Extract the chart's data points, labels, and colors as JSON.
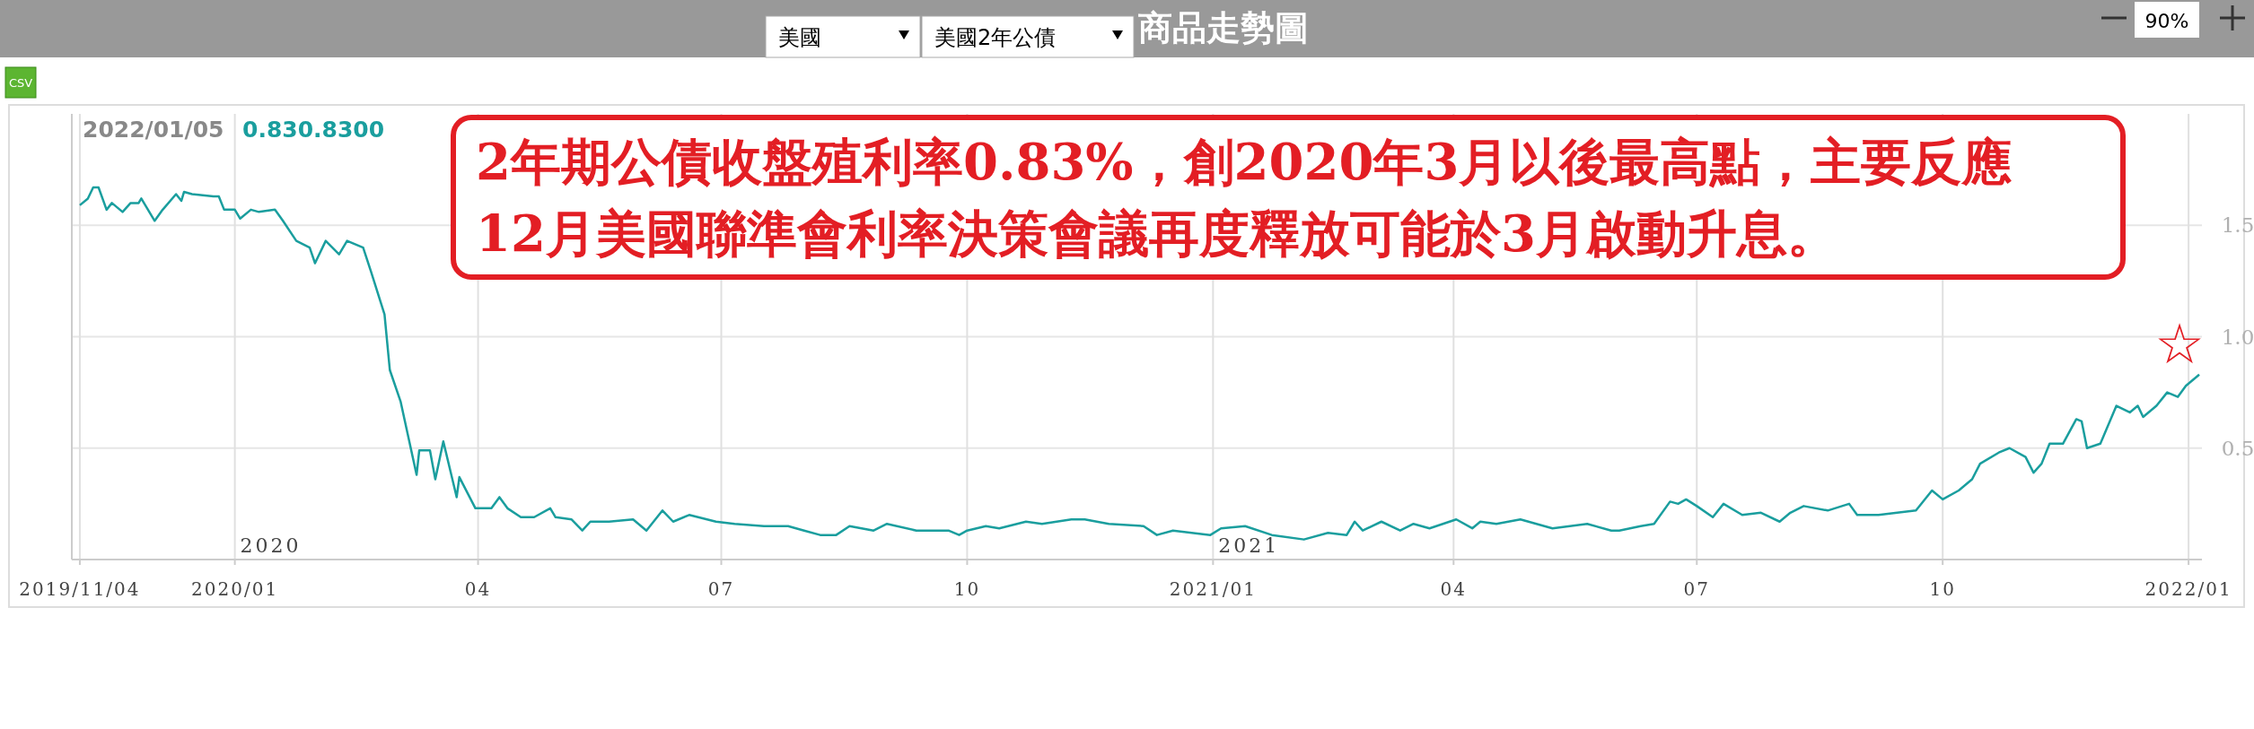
{
  "chart_data": {
    "type": "line",
    "title": "商品走勢圖",
    "x": [
      "2019-11-04",
      "2019-11-07",
      "2019-11-09",
      "2019-11-11",
      "2019-11-14",
      "2019-11-16",
      "2019-11-20",
      "2019-11-23",
      "2019-11-26",
      "2019-11-27",
      "2019-12-02",
      "2019-12-05",
      "2019-12-10",
      "2019-12-12",
      "2019-12-13",
      "2019-12-16",
      "2019-12-24",
      "2019-12-26",
      "2019-12-28",
      "2020-01-01",
      "2020-01-03",
      "2020-01-07",
      "2020-01-10",
      "2020-01-16",
      "2020-01-19",
      "2020-01-24",
      "2020-01-29",
      "2020-01-31",
      "2020-02-04",
      "2020-02-09",
      "2020-02-12",
      "2020-02-18",
      "2020-02-21",
      "2020-02-26",
      "2020-02-28",
      "2020-03-03",
      "2020-03-09",
      "2020-03-10",
      "2020-03-14",
      "2020-03-16",
      "2020-03-19",
      "2020-03-24",
      "2020-03-25",
      "2020-03-31",
      "2020-04-06",
      "2020-04-09",
      "2020-04-12",
      "2020-04-17",
      "2020-04-22",
      "2020-04-28",
      "2020-04-30",
      "2020-05-06",
      "2020-05-10",
      "2020-05-13",
      "2020-05-20",
      "2020-05-29",
      "2020-06-03",
      "2020-06-09",
      "2020-06-13",
      "2020-06-19",
      "2020-06-29",
      "2020-07-06",
      "2020-07-17",
      "2020-07-26",
      "2020-08-01",
      "2020-08-07",
      "2020-08-13",
      "2020-08-18",
      "2020-08-27",
      "2020-09-01",
      "2020-09-12",
      "2020-09-19",
      "2020-09-24",
      "2020-09-28",
      "2020-10-01",
      "2020-10-08",
      "2020-10-13",
      "2020-10-23",
      "2020-10-29",
      "2020-11-09",
      "2020-11-14",
      "2020-11-23",
      "2020-12-06",
      "2020-12-11",
      "2020-12-17",
      "2020-12-31",
      "2021-01-04",
      "2021-01-13",
      "2021-01-23",
      "2021-02-04",
      "2021-02-13",
      "2021-02-20",
      "2021-02-23",
      "2021-02-26",
      "2021-03-05",
      "2021-03-12",
      "2021-03-17",
      "2021-03-23",
      "2021-04-02",
      "2021-04-08",
      "2021-04-11",
      "2021-04-17",
      "2021-04-26",
      "2021-05-08",
      "2021-05-21",
      "2021-05-30",
      "2021-06-02",
      "2021-06-10",
      "2021-06-15",
      "2021-06-21",
      "2021-06-24",
      "2021-06-27",
      "2021-07-01",
      "2021-07-07",
      "2021-07-11",
      "2021-07-18",
      "2021-07-25",
      "2021-08-01",
      "2021-08-05",
      "2021-08-10",
      "2021-08-19",
      "2021-08-27",
      "2021-08-30",
      "2021-09-07",
      "2021-09-14",
      "2021-09-21",
      "2021-09-27",
      "2021-10-01",
      "2021-10-07",
      "2021-10-12",
      "2021-10-15",
      "2021-10-22",
      "2021-10-26",
      "2021-11-01",
      "2021-11-04",
      "2021-11-07",
      "2021-11-10",
      "2021-11-15",
      "2021-11-20",
      "2021-11-22",
      "2021-11-24",
      "2021-11-29",
      "2021-12-05",
      "2021-12-10",
      "2021-12-13",
      "2021-12-15",
      "2021-12-20",
      "2021-12-24",
      "2021-12-28",
      "2021-12-31",
      "2022-01-05"
    ],
    "series": [
      {
        "color": "#1a9e9e",
        "values": [
          1.59,
          1.62,
          1.67,
          1.67,
          1.57,
          1.6,
          1.56,
          1.6,
          1.6,
          1.62,
          1.52,
          1.57,
          1.64,
          1.61,
          1.65,
          1.64,
          1.63,
          1.63,
          1.57,
          1.57,
          1.53,
          1.57,
          1.56,
          1.57,
          1.52,
          1.43,
          1.4,
          1.33,
          1.43,
          1.37,
          1.43,
          1.4,
          1.29,
          1.1,
          0.85,
          0.71,
          0.38,
          0.49,
          0.49,
          0.36,
          0.53,
          0.28,
          0.37,
          0.23,
          0.23,
          0.28,
          0.23,
          0.19,
          0.19,
          0.23,
          0.19,
          0.18,
          0.13,
          0.17,
          0.17,
          0.18,
          0.13,
          0.22,
          0.17,
          0.2,
          0.17,
          0.16,
          0.15,
          0.15,
          0.13,
          0.11,
          0.11,
          0.15,
          0.13,
          0.16,
          0.13,
          0.13,
          0.13,
          0.11,
          0.13,
          0.15,
          0.14,
          0.17,
          0.16,
          0.18,
          0.18,
          0.16,
          0.15,
          0.11,
          0.13,
          0.11,
          0.14,
          0.15,
          0.11,
          0.09,
          0.12,
          0.11,
          0.17,
          0.13,
          0.17,
          0.13,
          0.16,
          0.14,
          0.18,
          0.14,
          0.17,
          0.16,
          0.18,
          0.14,
          0.16,
          0.13,
          0.13,
          0.15,
          0.16,
          0.26,
          0.25,
          0.27,
          0.24,
          0.19,
          0.25,
          0.2,
          0.21,
          0.17,
          0.21,
          0.24,
          0.22,
          0.25,
          0.2,
          0.2,
          0.21,
          0.22,
          0.31,
          0.27,
          0.31,
          0.36,
          0.43,
          0.48,
          0.5,
          0.46,
          0.39,
          0.43,
          0.52,
          0.52,
          0.63,
          0.62,
          0.5,
          0.52,
          0.69,
          0.66,
          0.69,
          0.64,
          0.69,
          0.75,
          0.73,
          0.78,
          0.83
        ]
      }
    ],
    "xlim": [
      "2019-11-01",
      "2022-01-06"
    ],
    "xticks": [
      {
        "value": "2019-11-04",
        "label": "2019/11/04"
      },
      {
        "value": "2020-01-01",
        "label": "2020/01"
      },
      {
        "value": "2020-04-01",
        "label": "04"
      },
      {
        "value": "2020-07-01",
        "label": "07"
      },
      {
        "value": "2020-10-01",
        "label": "10"
      },
      {
        "value": "2021-01-01",
        "label": "2021/01"
      },
      {
        "value": "2021-04-01",
        "label": "04"
      },
      {
        "value": "2021-07-01",
        "label": "07"
      },
      {
        "value": "2021-10-01",
        "label": "10"
      },
      {
        "value": "2022-01-01",
        "label": "2022/01"
      }
    ],
    "ylim": [
      0,
      2
    ],
    "yticks": [
      0.5,
      {
        "value": 1,
        "label": "1.0"
      },
      1.5
    ],
    "grid": true,
    "marker": "none",
    "line_style": "solid",
    "annotations": [
      "2022/01/05",
      "0.830.8300",
      "2年期公債收盤殖利率0.83%，創2020年3月以後最高點，主要反應",
      "12月美國聯準會利率決策會議再度釋放可能於3月啟動升息。",
      "2020",
      "2021",
      "☆",
      "美國",
      "美國2年公債",
      "90%",
      "CSV"
    ]
  }
}
